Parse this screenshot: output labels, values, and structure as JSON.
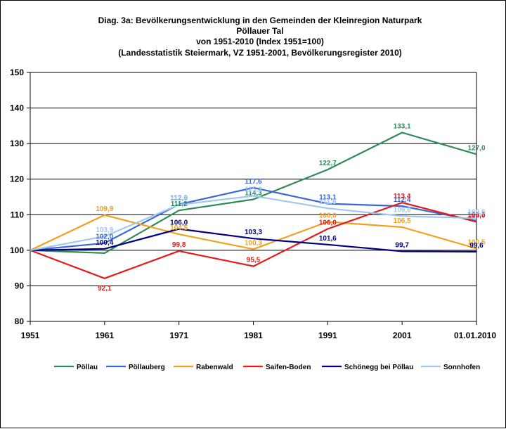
{
  "chart_data": {
    "type": "line",
    "title_lines": [
      "Diag. 3a: Bevölkerungsentwicklung  in den Gemeinden  der Kleinregion Naturpark",
      "Pöllauer Tal",
      "von 1951-2010  (Index 1951=100)",
      "(Landesstatistik  Steiermark,  VZ 1951-2001,  Bevölkerungsregister  2010)"
    ],
    "xlabel": "",
    "ylabel": "",
    "categories": [
      "1951",
      "1961",
      "1971",
      "1981",
      "1991",
      "2001",
      "01.01.2010"
    ],
    "ylim": [
      80,
      150
    ],
    "yticks": [
      80,
      90,
      100,
      110,
      120,
      130,
      140,
      150
    ],
    "grid": true,
    "legend_position": "bottom",
    "series": [
      {
        "name": "Pöllau",
        "color": "#2E8B57",
        "values": [
          100,
          99.2,
          111.2,
          114.3,
          122.7,
          133.1,
          127.0
        ],
        "labels": [
          "",
          "",
          "111,2",
          "114,3",
          "122,7",
          "133,1",
          "127,0"
        ]
      },
      {
        "name": "Pöllauberg",
        "color": "#3A66D9",
        "values": [
          100,
          102.0,
          112.9,
          117.6,
          113.1,
          112.4,
          108.3
        ],
        "labels": [
          "",
          "102,0",
          "112,9",
          "117,6",
          "113,1",
          "112,4",
          "108,3"
        ]
      },
      {
        "name": "Rabenwald",
        "color": "#F0A020",
        "values": [
          100,
          109.9,
          104.5,
          100.3,
          108.0,
          106.5,
          100.5
        ],
        "labels": [
          "",
          "109,9",
          "104,5",
          "100,3",
          "108,0",
          "106,5",
          "100,5"
        ]
      },
      {
        "name": "Saifen-Boden",
        "color": "#E41A1C",
        "values": [
          100,
          92.1,
          99.8,
          95.5,
          106.0,
          113.4,
          108.0
        ],
        "labels": [
          "",
          "92,1",
          "99,8",
          "95,5",
          "106,0",
          "113,4",
          "108,0"
        ]
      },
      {
        "name": "Schönegg bei Pöllau",
        "color": "#000080",
        "values": [
          100,
          100.4,
          106.0,
          103.3,
          101.6,
          99.7,
          99.6
        ],
        "labels": [
          "",
          "100,4",
          "106,0",
          "103,3",
          "101,6",
          "99,7",
          "99,6"
        ]
      },
      {
        "name": "Sonnhofen",
        "color": "#9EC8F0",
        "values": [
          100,
          103.9,
          112.8,
          115.3,
          111.8,
          109.6,
          109.0
        ],
        "labels": [
          "",
          "103,9",
          "112,8",
          "115,3",
          "111,8",
          "109,6",
          "109,0"
        ]
      }
    ]
  }
}
